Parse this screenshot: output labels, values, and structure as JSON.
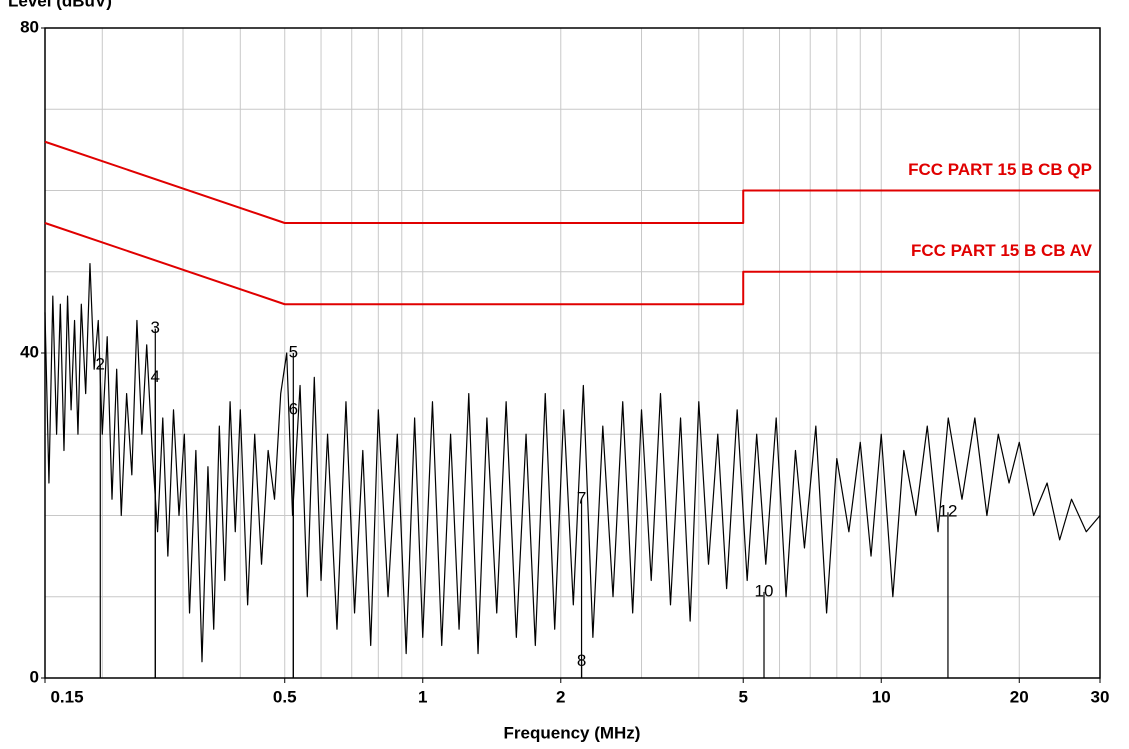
{
  "chart_data": {
    "type": "line",
    "x_scale": "log",
    "ylabel": "Level (dBuV)",
    "xlabel": "Frequency (MHz)",
    "xlim": [
      0.15,
      30
    ],
    "ylim": [
      0,
      80
    ],
    "xticks": [
      0.15,
      0.5,
      1,
      2,
      5,
      10,
      20,
      30
    ],
    "yticks": [
      0,
      40,
      80
    ],
    "xgrid": [
      0.2,
      0.3,
      0.4,
      0.5,
      0.6,
      0.7,
      0.8,
      0.9,
      1,
      2,
      3,
      4,
      5,
      6,
      7,
      8,
      9,
      10,
      20
    ],
    "ygrid": [
      10,
      20,
      30,
      40,
      50,
      60,
      70
    ],
    "series": [
      {
        "name": "FCC PART 15 B CB QP",
        "color": "#e00000",
        "x": [
          0.15,
          0.5,
          5,
          5,
          30
        ],
        "values": [
          66,
          56,
          56,
          60,
          60
        ]
      },
      {
        "name": "FCC PART 15 B CB AV",
        "color": "#e00000",
        "x": [
          0.15,
          0.5,
          5,
          5,
          30
        ],
        "values": [
          56,
          46,
          46,
          50,
          50
        ]
      },
      {
        "color": "#000000",
        "x": [
          0.15,
          0.153,
          0.156,
          0.159,
          0.162,
          0.165,
          0.168,
          0.171,
          0.174,
          0.177,
          0.18,
          0.184,
          0.188,
          0.192,
          0.196,
          0.2,
          0.205,
          0.21,
          0.215,
          0.22,
          0.226,
          0.232,
          0.238,
          0.244,
          0.25,
          0.257,
          0.264,
          0.271,
          0.278,
          0.286,
          0.294,
          0.302,
          0.31,
          0.32,
          0.33,
          0.34,
          0.35,
          0.36,
          0.37,
          0.38,
          0.39,
          0.4,
          0.415,
          0.43,
          0.445,
          0.46,
          0.475,
          0.49,
          0.505,
          0.52,
          0.54,
          0.56,
          0.58,
          0.6,
          0.62,
          0.65,
          0.68,
          0.71,
          0.74,
          0.77,
          0.8,
          0.84,
          0.88,
          0.92,
          0.96,
          1.0,
          1.05,
          1.1,
          1.15,
          1.2,
          1.26,
          1.32,
          1.38,
          1.45,
          1.52,
          1.6,
          1.68,
          1.76,
          1.85,
          1.94,
          2.03,
          2.13,
          2.24,
          2.35,
          2.47,
          2.6,
          2.73,
          2.87,
          3.0,
          3.15,
          3.3,
          3.47,
          3.65,
          3.83,
          4.0,
          4.2,
          4.4,
          4.6,
          4.85,
          5.1,
          5.35,
          5.6,
          5.9,
          6.2,
          6.5,
          6.8,
          7.2,
          7.6,
          8.0,
          8.5,
          9.0,
          9.5,
          10,
          10.6,
          11.2,
          11.9,
          12.6,
          13.3,
          14,
          15,
          16,
          17,
          18,
          19,
          20,
          21.5,
          23,
          24.5,
          26,
          28,
          30
        ],
        "values": [
          45,
          24,
          47,
          30,
          46,
          28,
          47,
          33,
          44,
          30,
          46,
          35,
          51,
          38,
          44,
          30,
          42,
          22,
          38,
          20,
          35,
          25,
          44,
          30,
          41,
          28,
          18,
          32,
          15,
          33,
          20,
          30,
          8,
          28,
          2,
          26,
          6,
          31,
          12,
          34,
          18,
          33,
          9,
          30,
          14,
          28,
          22,
          35,
          40,
          20,
          36,
          10,
          37,
          12,
          30,
          6,
          34,
          8,
          28,
          4,
          33,
          10,
          30,
          3,
          32,
          5,
          34,
          4,
          30,
          6,
          35,
          3,
          32,
          8,
          34,
          5,
          30,
          4,
          35,
          6,
          33,
          9,
          36,
          5,
          31,
          10,
          34,
          8,
          33,
          12,
          35,
          9,
          32,
          7,
          34,
          14,
          30,
          11,
          33,
          12,
          30,
          14,
          32,
          10,
          28,
          16,
          31,
          8,
          27,
          18,
          29,
          15,
          30,
          10,
          28,
          20,
          31,
          18,
          32,
          22,
          32,
          20,
          30,
          24,
          29,
          20,
          24,
          17,
          22,
          18,
          20
        ]
      }
    ],
    "markers": [
      {
        "label": 2,
        "x": 0.198,
        "value": 38.5
      },
      {
        "label": 3,
        "x": 0.261,
        "value": 43
      },
      {
        "label": 4,
        "x": 0.261,
        "value": 37
      },
      {
        "label": 5,
        "x": 0.522,
        "value": 40
      },
      {
        "label": 6,
        "x": 0.522,
        "value": 33
      },
      {
        "label": 7,
        "x": 2.22,
        "value": 22
      },
      {
        "label": 8,
        "x": 2.22,
        "value": 2
      },
      {
        "label": 10,
        "x": 5.55,
        "value": 10.6
      },
      {
        "label": 12,
        "x": 13.98,
        "value": 20.4
      }
    ]
  }
}
